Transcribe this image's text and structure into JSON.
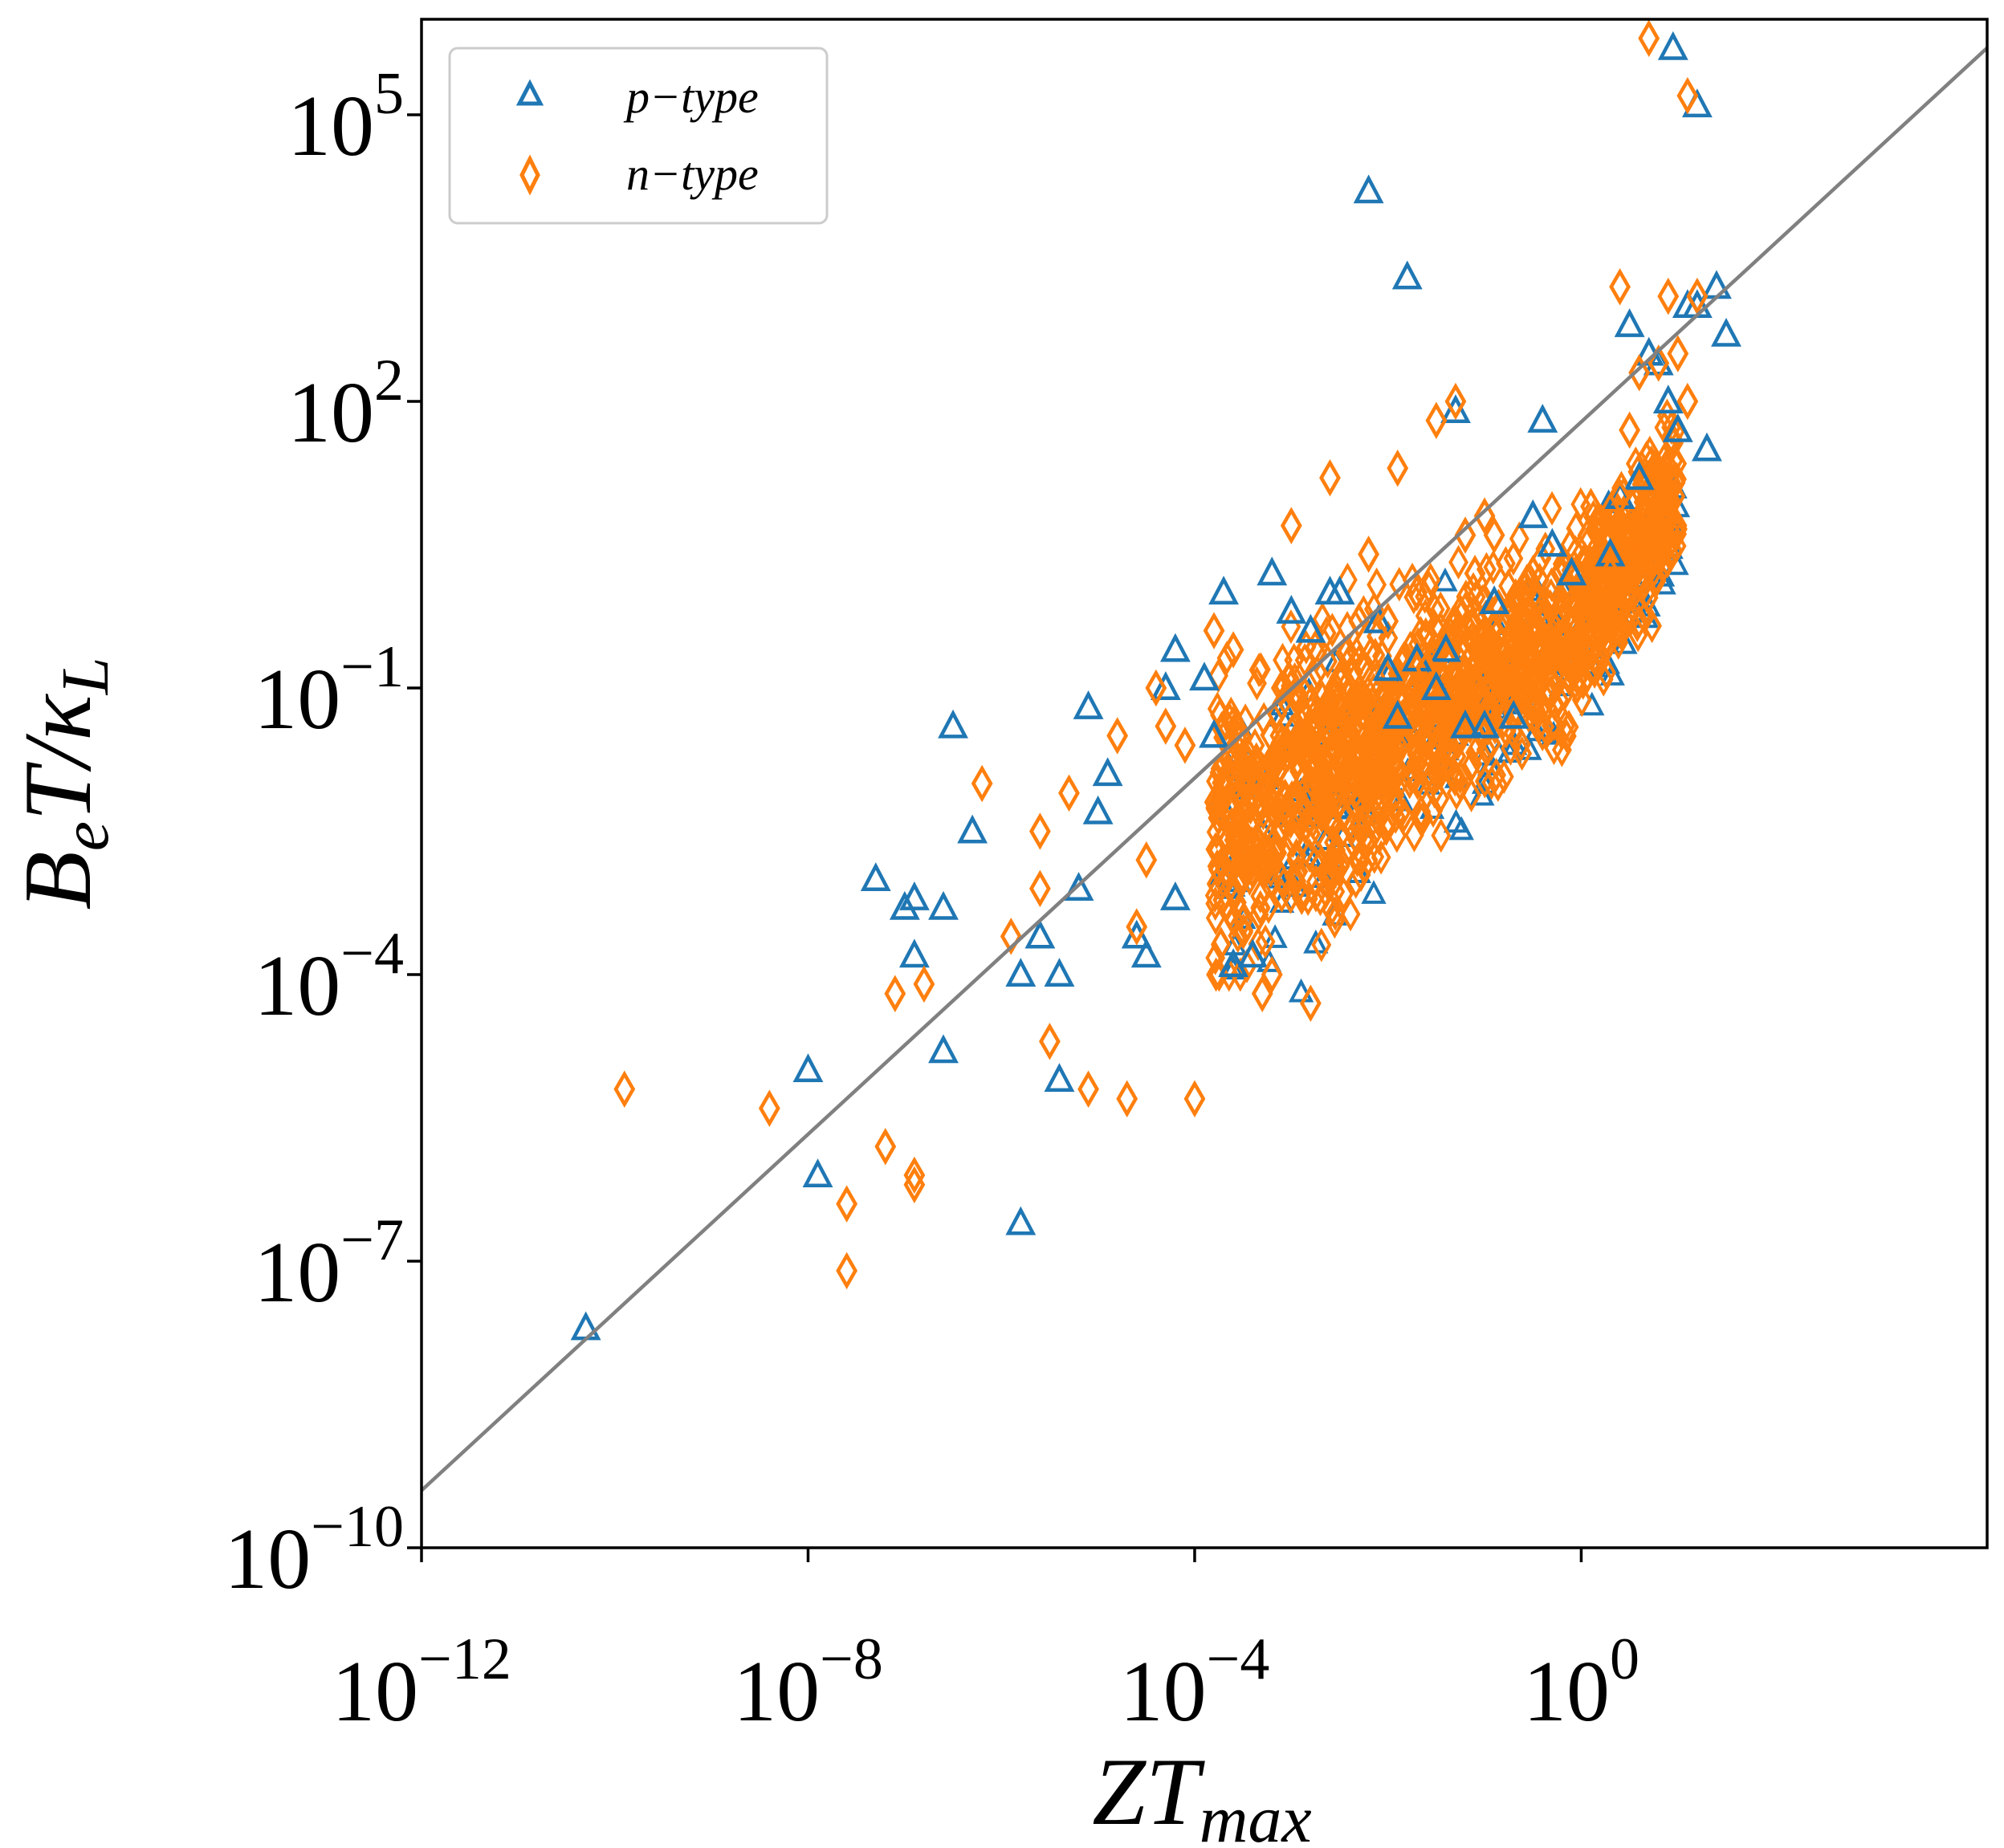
{
  "chart_data": {
    "type": "scatter",
    "title": "",
    "xscale": "log",
    "yscale": "log",
    "xlim": [
      -12,
      4.2
    ],
    "ylim": [
      -10,
      6
    ],
    "xlabel": {
      "main": "ZT",
      "sub": "max"
    },
    "ylabel": {
      "b": "B",
      "e": "e",
      "t": "T/κ",
      "l": "L"
    },
    "x_ticks": [
      {
        "base": "10",
        "exp": "−12",
        "value": -12
      },
      {
        "base": "10",
        "exp": "−8",
        "value": -8
      },
      {
        "base": "10",
        "exp": "−4",
        "value": -4
      },
      {
        "base": "10",
        "exp": "0",
        "value": 0
      }
    ],
    "y_ticks": [
      {
        "base": "10",
        "exp": "−10",
        "value": -10
      },
      {
        "base": "10",
        "exp": "−7",
        "value": -7
      },
      {
        "base": "10",
        "exp": "−4",
        "value": -4
      },
      {
        "base": "10",
        "exp": "−1",
        "value": -1
      },
      {
        "base": "10",
        "exp": "2",
        "value": 2
      },
      {
        "base": "10",
        "exp": "5",
        "value": 5
      }
    ],
    "legend_position": "top-left",
    "reference_line": {
      "x": [
        -12,
        4.2
      ],
      "y": [
        -9.4,
        5.7
      ],
      "color": "#808080"
    },
    "colors": {
      "p": "#1f77b4",
      "n": "#ff7f0e",
      "line": "#808080"
    },
    "series": [
      {
        "name": "p−type",
        "marker": "triangle",
        "x_log10": [
          -10.3,
          -7.9,
          -8.0,
          -6.6,
          -6.9,
          -5.8,
          -6.3,
          -6.5,
          -6.6,
          -7.3,
          -6.9,
          -7.0,
          -5.8,
          -5.4,
          -5.6,
          -5.4,
          -5.2,
          -5.0,
          -4.3,
          -4.6,
          -4.5,
          -4.2,
          -3.9,
          -3.8,
          -3.6,
          -3.4,
          -3.0,
          -2.6,
          -2.0,
          -1.9,
          -1.2,
          -1.4,
          -1.0,
          -0.7,
          -0.5,
          -0.3,
          0.4,
          0.7,
          0.9,
          1.0,
          1.3,
          0.6,
          0.8,
          1.2,
          0.5,
          -2.2,
          -1.8,
          -1.3,
          -0.4,
          -4.9,
          -5.1,
          -4.2,
          -3.7,
          -3.2,
          -2.8,
          -2.5,
          -2.1,
          -1.7,
          -1.5,
          -0.9,
          -0.1,
          0.3,
          1.1,
          1.4,
          1.5,
          1.2,
          0.95
        ],
        "y_log10": [
          -7.7,
          -6.1,
          -5.0,
          -4.8,
          -3.8,
          -6.6,
          -2.5,
          -1.4,
          -3.3,
          -3.0,
          -3.2,
          -3.3,
          -4.0,
          -4.0,
          -3.6,
          -5.1,
          -3.1,
          -2.3,
          -1.0,
          -3.6,
          -3.8,
          -3.2,
          -0.9,
          -1.5,
          -3.9,
          -3.8,
          -0.2,
          0.0,
          -0.8,
          -1.3,
          -1.4,
          -0.6,
          -1.4,
          -1.3,
          0.8,
          0.5,
          1.0,
          2.5,
          2.0,
          1.7,
          1.5,
          1.2,
          2.4,
          3.0,
          2.8,
          4.2,
          3.3,
          1.9,
          1.8,
          -1.9,
          -1.2,
          -0.6,
          0.0,
          0.2,
          -0.4,
          0.0,
          -0.3,
          -0.7,
          -1.0,
          -0.1,
          0.2,
          0.4,
          3.0,
          3.2,
          2.7,
          5.1,
          5.7
        ]
      },
      {
        "name": "n−type",
        "marker": "diamond",
        "x_log10": [
          -9.9,
          -8.4,
          -7.6,
          -7.6,
          -7.2,
          -6.9,
          -6.9,
          -7.1,
          -6.8,
          -6.2,
          -5.9,
          -5.6,
          -5.5,
          -5.1,
          -5.6,
          -4.7,
          -4.5,
          -4.6,
          -4.3,
          -4.0,
          -3.8,
          -3.5,
          -3.3,
          -3.2,
          -3.1,
          -2.8,
          -2.7,
          -2.5,
          -2.3,
          -2.0,
          -1.9,
          -1.6,
          -1.2,
          -0.9,
          -0.5,
          -0.2,
          0.3,
          0.4,
          0.4,
          0.6,
          0.9,
          1.0,
          1.2,
          0.5,
          -1.5,
          -1.3,
          -1.0,
          -4.4,
          -4.8,
          -5.3,
          -4.1,
          -3.6,
          -3.0,
          -2.6,
          -2.2,
          -1.7,
          -1.1,
          -0.7,
          0.1,
          0.8,
          1.1,
          0.7,
          1.1
        ],
        "y_log10": [
          -5.2,
          -5.4,
          -7.1,
          -6.4,
          -5.8,
          -6.1,
          -6.2,
          -4.2,
          -4.1,
          -2.0,
          -3.6,
          -2.5,
          -4.7,
          -5.2,
          -3.1,
          -5.3,
          -2.8,
          -3.5,
          -1.4,
          -5.3,
          -0.4,
          -1.8,
          -4.2,
          -4.0,
          -1.0,
          -4.3,
          -2.3,
          -0.9,
          -0.3,
          -0.3,
          1.3,
          -0.8,
          0.6,
          0.6,
          0.2,
          -0.2,
          0.2,
          1.0,
          3.2,
          2.3,
          3.1,
          2.5,
          3.1,
          1.7,
          1.8,
          2.0,
          0.8,
          -1.0,
          -1.5,
          -2.1,
          -1.6,
          -0.6,
          0.7,
          1.2,
          0.4,
          0.0,
          0.2,
          -0.6,
          0.9,
          2.4,
          2.0,
          5.8,
          5.2
        ]
      }
    ],
    "dense_clusters": [
      {
        "series": "n−type",
        "x_log10": [
          -3.8,
          1.0
        ],
        "y_log10": [
          -4.0,
          1.5
        ],
        "count": 1400
      },
      {
        "series": "p−type",
        "x_log10": [
          -3.8,
          1.0
        ],
        "y_log10": [
          -4.2,
          0.8
        ],
        "count": 220
      }
    ]
  }
}
